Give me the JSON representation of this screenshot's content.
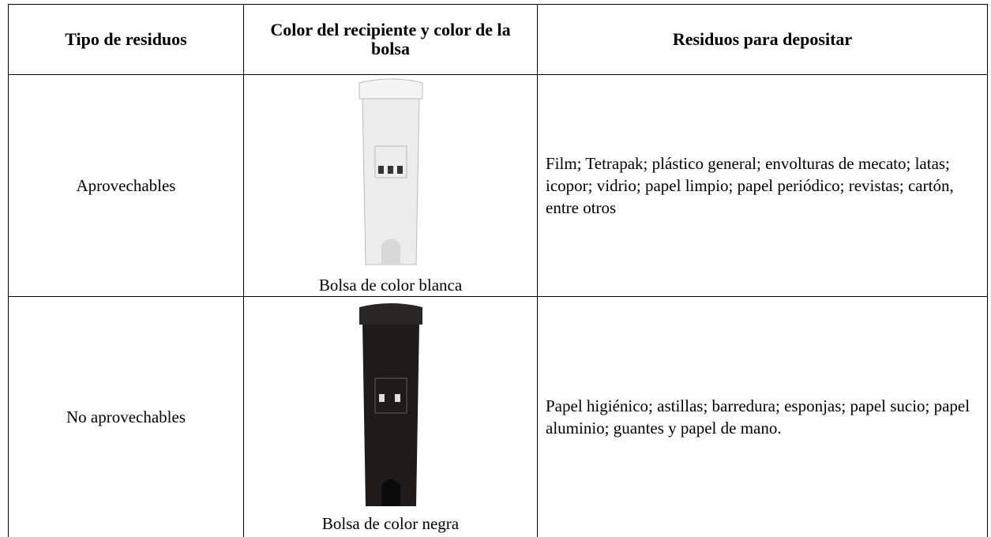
{
  "table": {
    "header": [
      "Tipo de residuos",
      "Color del recipiente y color de la bolsa",
      "Residuos para depositar"
    ],
    "rows": [
      [
        "Aprovechables",
        "Bolsa de color blanca",
        "Film; Tetrapak; plástico general; envolturas de mecato; latas; icopor; vidrio; papel limpio; papel periódico; revistas; cartón, entre otros"
      ],
      [
        "No aprovechables",
        "Bolsa de color negra",
        "Papel higiénico; astillas; barredura; esponjas; papel sucio; papel aluminio; guantes y papel de mano."
      ]
    ]
  }
}
